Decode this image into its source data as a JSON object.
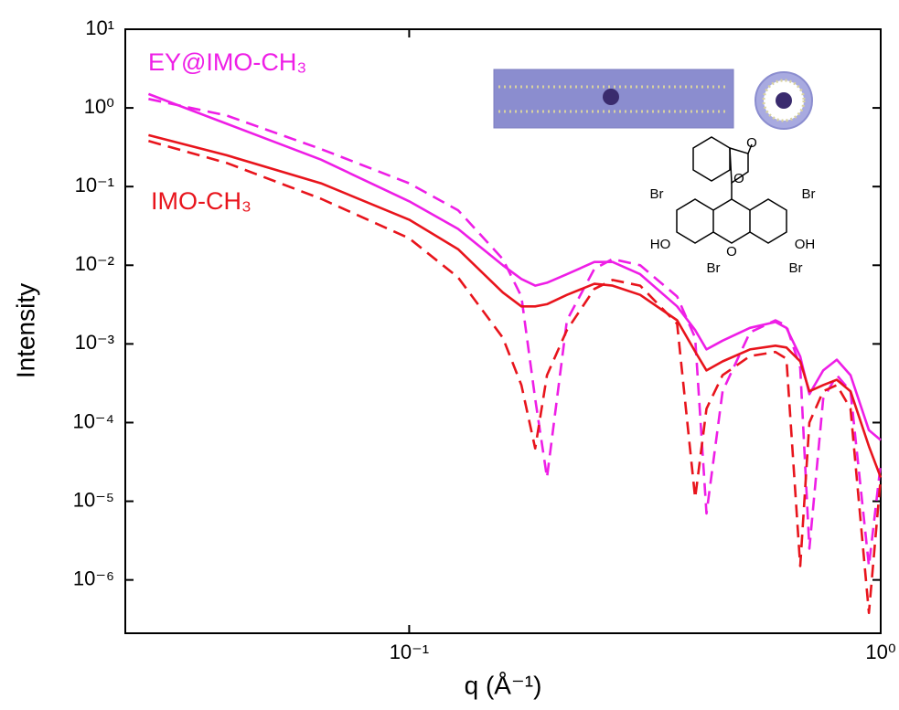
{
  "chart_data": {
    "type": "line",
    "x_label": "q (Å⁻¹)",
    "y_label": "Intensity",
    "xscale": "log",
    "yscale": "log",
    "xlim": [
      0.025,
      1
    ],
    "ylim": [
      2.1e-07,
      10
    ],
    "xticks": [
      {
        "value": 0.1,
        "label": "10⁻¹"
      },
      {
        "value": 1,
        "label": "10⁰"
      }
    ],
    "yticks": [
      {
        "value": 1e-06,
        "label": "10⁻⁶"
      },
      {
        "value": 1e-05,
        "label": "10⁻⁵"
      },
      {
        "value": 0.0001,
        "label": "10⁻⁴"
      },
      {
        "value": 0.001,
        "label": "10⁻³"
      },
      {
        "value": 0.01,
        "label": "10⁻²"
      },
      {
        "value": 0.1,
        "label": "10⁻¹"
      },
      {
        "value": 1,
        "label": "10⁰"
      },
      {
        "value": 10,
        "label": "10¹"
      }
    ],
    "x": [
      0.028,
      0.041,
      0.065,
      0.1,
      0.127,
      0.158,
      0.173,
      0.185,
      0.196,
      0.216,
      0.247,
      0.27,
      0.309,
      0.37,
      0.404,
      0.427,
      0.462,
      0.528,
      0.598,
      0.631,
      0.675,
      0.706,
      0.755,
      0.807,
      0.863,
      0.944,
      1.0
    ],
    "series": [
      {
        "name": "EY@IMO-CH₃",
        "color": "#ee1ee6",
        "dashed": false,
        "values": [
          1.5,
          0.63,
          0.22,
          0.065,
          0.029,
          0.01,
          0.0067,
          0.0055,
          0.006,
          0.0077,
          0.011,
          0.011,
          0.0077,
          0.003,
          0.0015,
          0.00085,
          0.0011,
          0.0016,
          0.0019,
          0.0016,
          0.00069,
          0.00023,
          0.00046,
          0.00063,
          0.0004,
          8e-05,
          6e-05
        ]
      },
      {
        "color": "#ee1ee6",
        "dashed": true,
        "values": [
          1.3,
          0.8,
          0.3,
          0.11,
          0.05,
          0.012,
          0.004,
          0.0002,
          2e-05,
          0.002,
          0.009,
          0.012,
          0.01,
          0.004,
          0.0012,
          7e-06,
          0.00025,
          0.0014,
          0.002,
          0.0017,
          0.0005,
          2.5e-06,
          0.0002,
          0.0004,
          0.00025,
          1.5e-06,
          3e-05
        ]
      },
      {
        "name": "IMO-CH₃",
        "color": "#e8141c",
        "dashed": false,
        "values": [
          0.45,
          0.25,
          0.11,
          0.038,
          0.016,
          0.0045,
          0.003,
          0.003,
          0.0032,
          0.0042,
          0.0058,
          0.0055,
          0.0042,
          0.002,
          0.0008,
          0.00046,
          0.0006,
          0.00085,
          0.00095,
          0.0009,
          0.0006,
          0.00025,
          0.0003,
          0.00035,
          0.00025,
          5e-05,
          2e-05
        ]
      },
      {
        "color": "#e8141c",
        "dashed": true,
        "values": [
          0.38,
          0.2,
          0.07,
          0.022,
          0.007,
          0.0012,
          0.0003,
          4.7e-05,
          0.0004,
          0.0015,
          0.005,
          0.0065,
          0.0055,
          0.0018,
          1.1e-05,
          0.00015,
          0.0004,
          0.0007,
          0.00079,
          0.00065,
          1.5e-06,
          0.0001,
          0.00025,
          0.0003,
          0.00015,
          3.8e-07,
          2e-05
        ]
      }
    ],
    "inset_labels": [
      "O",
      "O",
      "Br",
      "Br",
      "HO",
      "O",
      "OH",
      "Br",
      "Br"
    ]
  }
}
